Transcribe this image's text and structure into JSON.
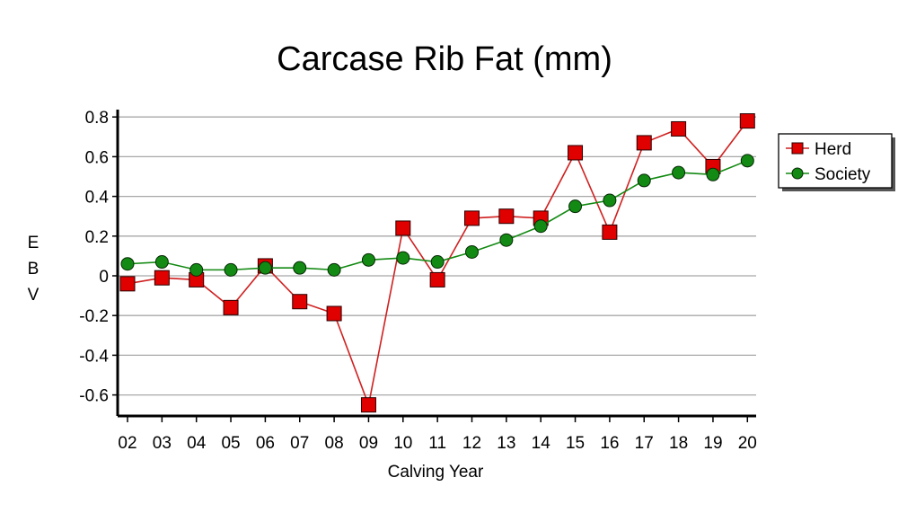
{
  "chart_data": {
    "type": "line",
    "title": "Carcase Rib Fat (mm)",
    "xlabel": "Calving Year",
    "ylabel_letters": [
      "E",
      "B",
      "V"
    ],
    "categories": [
      "02",
      "03",
      "04",
      "05",
      "06",
      "07",
      "08",
      "09",
      "10",
      "11",
      "12",
      "13",
      "14",
      "15",
      "16",
      "17",
      "18",
      "19",
      "20"
    ],
    "yticks": [
      "0.8",
      "0.6",
      "0.4",
      "0.2",
      "0",
      "-0.2",
      "-0.4",
      "-0.6"
    ],
    "ylim": [
      -0.7,
      0.8
    ],
    "grid": true,
    "legend_position": "right",
    "series": [
      {
        "name": "Herd",
        "marker": "square",
        "color": "#e00000",
        "line_color": "#d02020",
        "values": [
          -0.04,
          -0.01,
          -0.02,
          -0.16,
          0.05,
          -0.13,
          -0.19,
          -0.65,
          0.24,
          -0.02,
          0.29,
          0.3,
          0.29,
          0.62,
          0.22,
          0.67,
          0.74,
          0.55,
          0.78
        ]
      },
      {
        "name": "Society",
        "marker": "circle",
        "color": "#138a13",
        "line_color": "#138a13",
        "values": [
          0.06,
          0.07,
          0.03,
          0.03,
          0.04,
          0.04,
          0.03,
          0.08,
          0.09,
          0.07,
          0.12,
          0.18,
          0.25,
          0.35,
          0.38,
          0.48,
          0.52,
          0.51,
          0.58
        ]
      }
    ]
  }
}
